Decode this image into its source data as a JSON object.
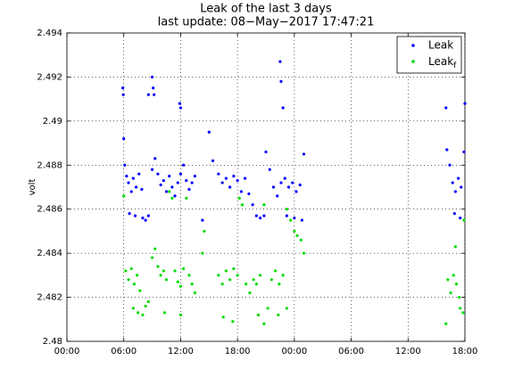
{
  "chart_data": {
    "type": "scatter",
    "title": "Leak of the last 3 days",
    "subtitle": "last update: 08−May−2017 17:47:21",
    "y_label": "volt",
    "xlim": [
      0,
      42
    ],
    "xticks": [
      {
        "value": 0,
        "label": "00:00"
      },
      {
        "value": 6,
        "label": "06:00"
      },
      {
        "value": 12,
        "label": "12:00"
      },
      {
        "value": 18,
        "label": "18:00"
      },
      {
        "value": 24,
        "label": "00:00"
      },
      {
        "value": 30,
        "label": "06:00"
      },
      {
        "value": 36,
        "label": "12:00"
      },
      {
        "value": 42,
        "label": "18:00"
      }
    ],
    "ylim": [
      2.48,
      2.494
    ],
    "yticks": [
      2.48,
      2.482,
      2.484,
      2.486,
      2.488,
      2.49,
      2.492,
      2.494
    ],
    "grid": true,
    "legend": "upper right",
    "series": [
      {
        "name": "Leak",
        "color": "#0000ff",
        "x": [
          5.9,
          5.95,
          6.0,
          8.6,
          9.0,
          9.1,
          9.2,
          11.9,
          12.0,
          22.5,
          22.6,
          22.8,
          40.0,
          42.0,
          6.1,
          6.3,
          6.5,
          6.8,
          7.0,
          7.3,
          7.6,
          7.9,
          6.6,
          7.2,
          8.0,
          8.3,
          8.6,
          9.0,
          9.3,
          9.6,
          9.9,
          10.2,
          10.5,
          10.8,
          11.1,
          11.4,
          11.7,
          12.0,
          12.3,
          12.6,
          12.9,
          13.2,
          13.5,
          14.3,
          15.0,
          15.4,
          16.0,
          16.4,
          16.8,
          17.2,
          17.6,
          18.0,
          18.4,
          18.8,
          19.2,
          19.6,
          20.0,
          20.4,
          20.8,
          21.0,
          21.4,
          21.8,
          22.2,
          22.6,
          23.0,
          23.4,
          23.8,
          24.2,
          24.6,
          23.2,
          24.0,
          24.8,
          25.0,
          40.1,
          40.4,
          40.7,
          41.0,
          41.3,
          41.6,
          40.9,
          41.5,
          41.9
        ],
        "values": [
          2.4915,
          2.4912,
          2.4892,
          2.4912,
          2.492,
          2.4915,
          2.4912,
          2.4908,
          2.4906,
          2.4927,
          2.4918,
          2.4906,
          2.4906,
          2.4908,
          2.488,
          2.4875,
          2.4872,
          2.4868,
          2.4874,
          2.487,
          2.4876,
          2.4869,
          2.4858,
          2.4857,
          2.4856,
          2.4855,
          2.4857,
          2.4878,
          2.4883,
          2.4876,
          2.4871,
          2.4873,
          2.4868,
          2.4875,
          2.487,
          2.4866,
          2.4872,
          2.4876,
          2.488,
          2.4873,
          2.4869,
          2.4872,
          2.4875,
          2.4855,
          2.4895,
          2.4882,
          2.4876,
          2.4872,
          2.4874,
          2.487,
          2.4875,
          2.4873,
          2.4868,
          2.4874,
          2.4867,
          2.4862,
          2.4857,
          2.4856,
          2.4857,
          2.4886,
          2.4878,
          2.487,
          2.4866,
          2.4872,
          2.4874,
          2.487,
          2.4872,
          2.4868,
          2.4871,
          2.4857,
          2.4856,
          2.4855,
          2.4885,
          2.4887,
          2.488,
          2.4872,
          2.4868,
          2.4874,
          2.487,
          2.4858,
          2.4856,
          2.4886
        ]
      },
      {
        "name": "Leak_f",
        "color": "#00dd00",
        "x": [
          6.0,
          6.2,
          6.5,
          6.8,
          7.1,
          7.4,
          7.7,
          7.0,
          7.5,
          8.0,
          8.3,
          8.6,
          9.0,
          9.3,
          9.6,
          9.9,
          10.2,
          10.5,
          10.3,
          10.8,
          11.1,
          11.4,
          11.7,
          12.0,
          12.3,
          12.6,
          12.9,
          13.2,
          13.5,
          12.0,
          14.3,
          14.5,
          16.0,
          16.4,
          16.8,
          17.2,
          17.6,
          18.0,
          16.5,
          17.5,
          18.2,
          18.5,
          18.9,
          19.3,
          19.7,
          20.0,
          20.4,
          20.8,
          20.2,
          20.8,
          21.2,
          21.6,
          22.0,
          22.4,
          22.8,
          22.3,
          23.2,
          23.6,
          24.0,
          24.3,
          24.7,
          23.2,
          25.0,
          40.0,
          40.2,
          40.5,
          40.8,
          41.1,
          41.4,
          41.0,
          41.5,
          41.8,
          41.9
        ],
        "values": [
          2.4866,
          2.4832,
          2.4828,
          2.4833,
          2.4826,
          2.483,
          2.4823,
          2.4815,
          2.4813,
          2.4812,
          2.4816,
          2.4818,
          2.4838,
          2.4842,
          2.4834,
          2.483,
          2.4832,
          2.4828,
          2.4813,
          2.4868,
          2.4865,
          2.4832,
          2.4827,
          2.4825,
          2.4833,
          2.4865,
          2.483,
          2.4826,
          2.4822,
          2.4812,
          2.484,
          2.485,
          2.483,
          2.4826,
          2.4832,
          2.4828,
          2.4833,
          2.483,
          2.4811,
          2.4809,
          2.4865,
          2.4862,
          2.4826,
          2.4822,
          2.4828,
          2.4826,
          2.483,
          2.4862,
          2.4812,
          2.4808,
          2.4815,
          2.4828,
          2.4832,
          2.4826,
          2.483,
          2.4812,
          2.486,
          2.4855,
          2.485,
          2.4848,
          2.4846,
          2.4815,
          2.484,
          2.4808,
          2.4828,
          2.4822,
          2.483,
          2.4826,
          2.482,
          2.4843,
          2.4815,
          2.4813,
          2.4855
        ]
      }
    ]
  }
}
